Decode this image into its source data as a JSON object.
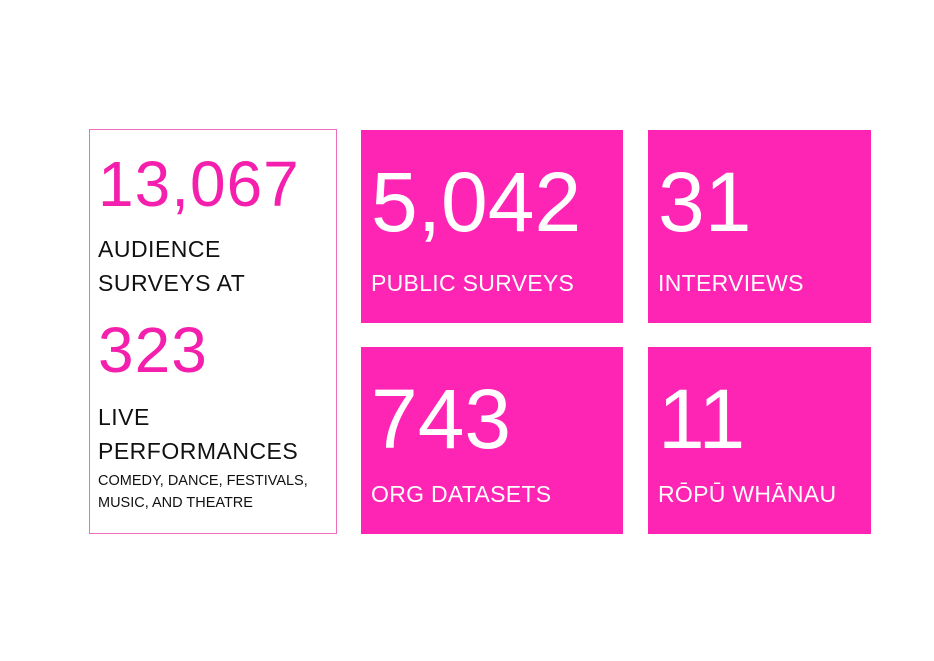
{
  "colors": {
    "accent": "#fe24b4",
    "accent_text": "#f51fae",
    "border": "#f06cc0",
    "text_dark": "#111111",
    "text_light": "#ffffff"
  },
  "left_panel": {
    "audience_count": "13,067",
    "audience_caption_line1": "AUDIENCE",
    "audience_caption_line2": "SURVEYS AT",
    "performance_count": "323",
    "performance_caption_line1": "LIVE",
    "performance_caption_line2": "PERFORMANCES",
    "genres_line1": "COMEDY, DANCE, FESTIVALS,",
    "genres_line2": "MUSIC, AND THEATRE"
  },
  "tiles": [
    {
      "number": "5,042",
      "label": "PUBLIC SURVEYS"
    },
    {
      "number": "31",
      "label": "INTERVIEWS"
    },
    {
      "number": "743",
      "label": "ORG DATASETS"
    },
    {
      "number": "11",
      "label": "RŌPŪ WHĀNAU"
    }
  ]
}
